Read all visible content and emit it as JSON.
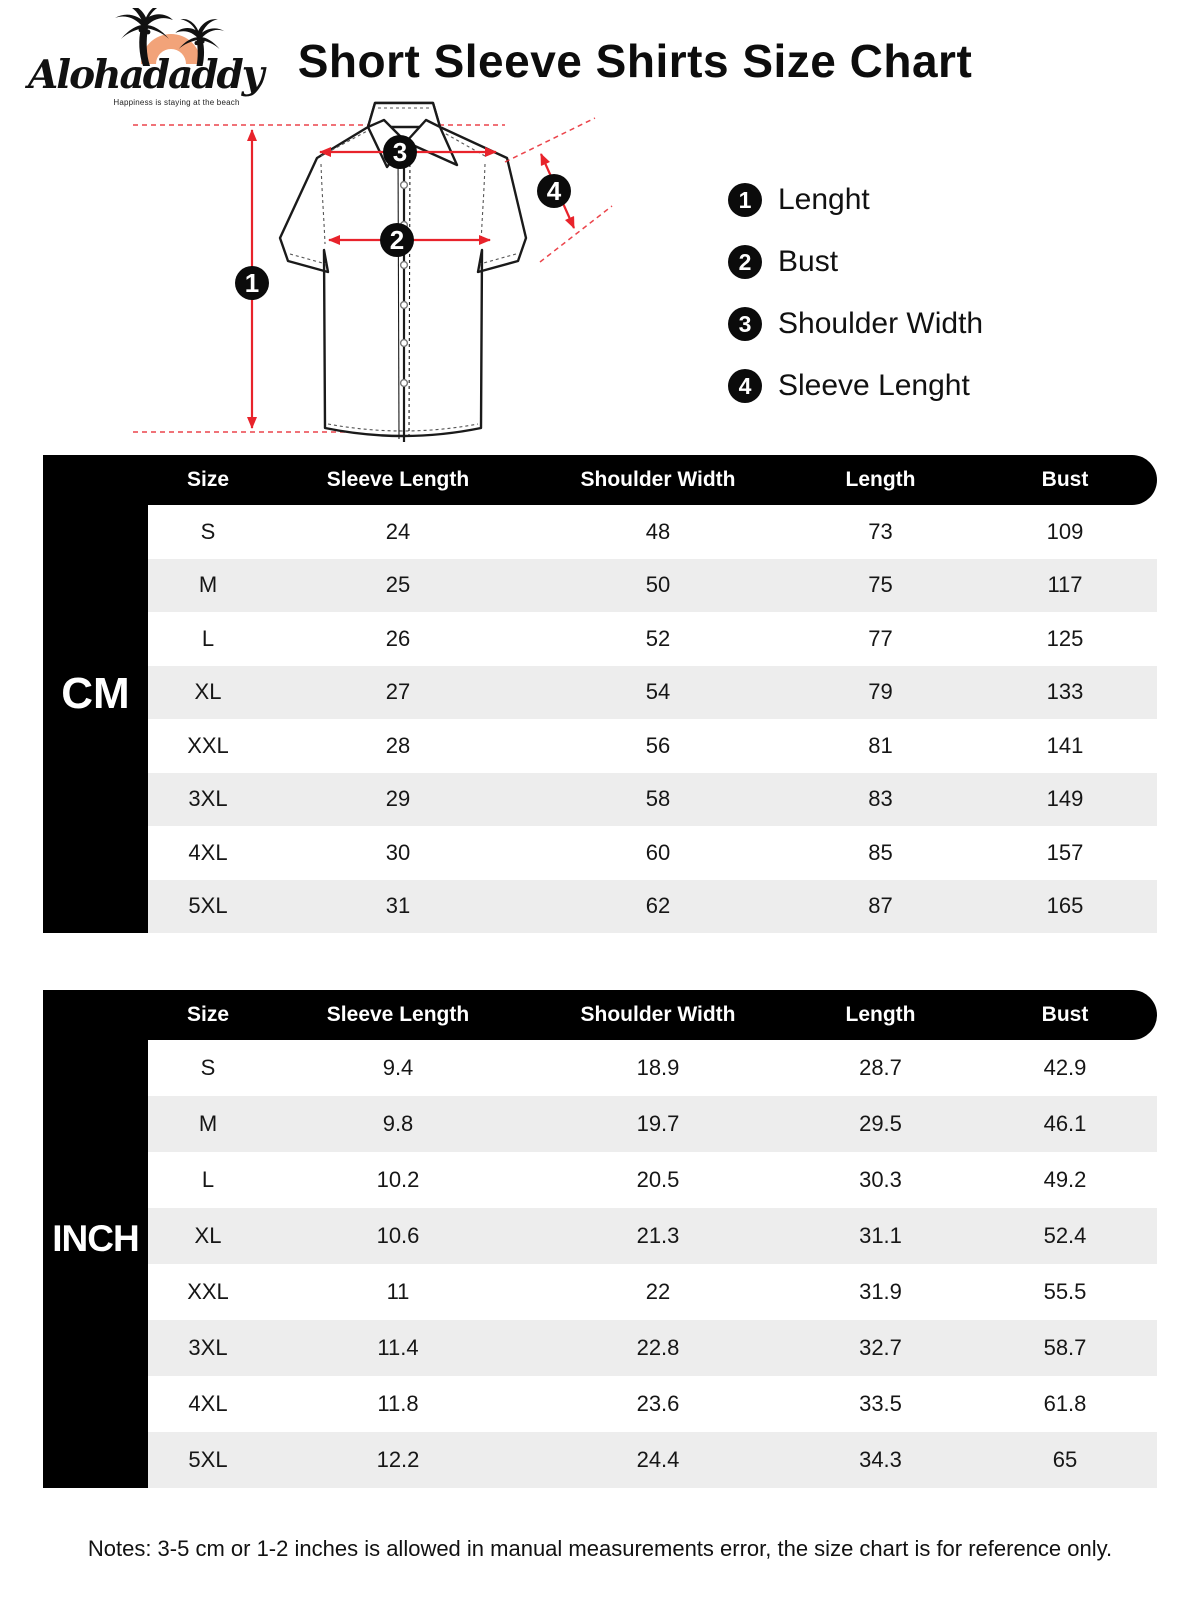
{
  "logo": {
    "brand": "Alohadaddy",
    "tagline": "Happiness is staying at the beach"
  },
  "title": "Short Sleeve Shirts Size Chart",
  "diagram": {
    "markers": [
      "1",
      "2",
      "3",
      "4"
    ]
  },
  "legend": {
    "items": [
      {
        "num": "1",
        "label": "Lenght"
      },
      {
        "num": "2",
        "label": "Bust"
      },
      {
        "num": "3",
        "label": "Shoulder Width"
      },
      {
        "num": "4",
        "label": "Sleeve Lenght"
      }
    ]
  },
  "tables": {
    "cm": {
      "unit_label": "CM",
      "columns": [
        "Size",
        "Sleeve Length",
        "Shoulder Width",
        "Length",
        "Bust"
      ],
      "rows": [
        [
          "S",
          "24",
          "48",
          "73",
          "109"
        ],
        [
          "M",
          "25",
          "50",
          "75",
          "117"
        ],
        [
          "L",
          "26",
          "52",
          "77",
          "125"
        ],
        [
          "XL",
          "27",
          "54",
          "79",
          "133"
        ],
        [
          "XXL",
          "28",
          "56",
          "81",
          "141"
        ],
        [
          "3XL",
          "29",
          "58",
          "83",
          "149"
        ],
        [
          "4XL",
          "30",
          "60",
          "85",
          "157"
        ],
        [
          "5XL",
          "31",
          "62",
          "87",
          "165"
        ]
      ]
    },
    "inch": {
      "unit_label": "INCH",
      "columns": [
        "Size",
        "Sleeve Length",
        "Shoulder Width",
        "Length",
        "Bust"
      ],
      "rows": [
        [
          "S",
          "9.4",
          "18.9",
          "28.7",
          "42.9"
        ],
        [
          "M",
          "9.8",
          "19.7",
          "29.5",
          "46.1"
        ],
        [
          "L",
          "10.2",
          "20.5",
          "30.3",
          "49.2"
        ],
        [
          "XL",
          "10.6",
          "21.3",
          "31.1",
          "52.4"
        ],
        [
          "XXL",
          "11",
          "22",
          "31.9",
          "55.5"
        ],
        [
          "3XL",
          "11.4",
          "22.8",
          "32.7",
          "58.7"
        ],
        [
          "4XL",
          "11.8",
          "23.6",
          "33.5",
          "61.8"
        ],
        [
          "5XL",
          "12.2",
          "24.4",
          "34.3",
          "65"
        ]
      ]
    }
  },
  "note": "Notes: 3-5 cm or 1-2 inches is allowed in manual measurements error, the size chart is for reference only.",
  "colors": {
    "accent_red": "#e8232b",
    "logo_orange": "#f2a379",
    "stripe_gray": "#ededed",
    "table_black": "#000000"
  }
}
